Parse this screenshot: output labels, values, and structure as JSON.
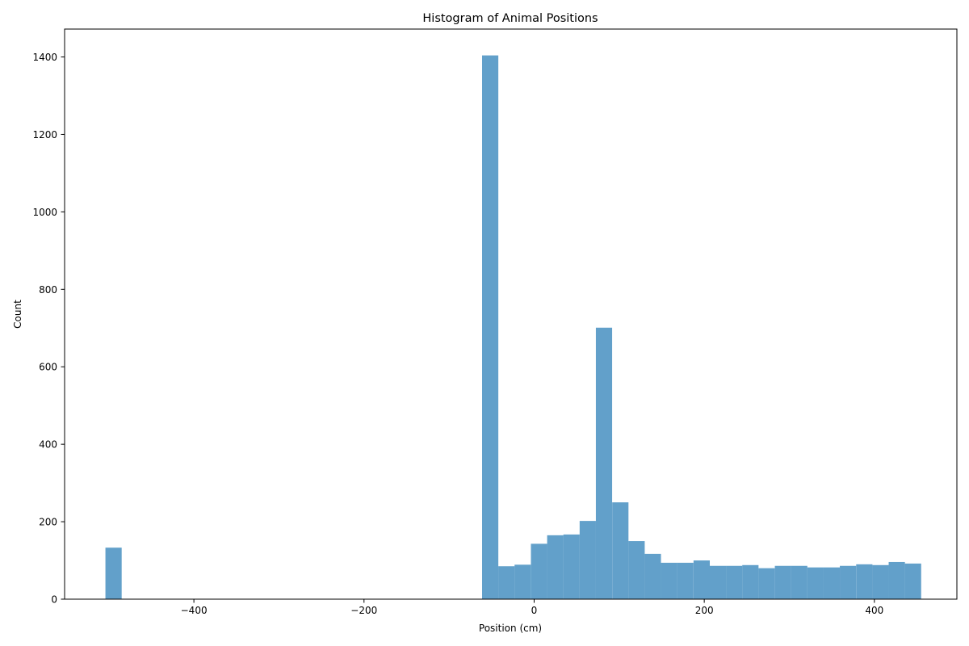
{
  "chart_data": {
    "type": "bar",
    "title": "Histogram of Animal Positions",
    "xlabel": "Position (cm)",
    "ylabel": "Count",
    "xlim": [
      -552,
      497
    ],
    "ylim": [
      0,
      1472
    ],
    "bin_width": 19.1,
    "bar_color": "#1f77b4",
    "bar_opacity": 0.7,
    "grid": false,
    "x_ticks": [
      -400,
      -200,
      0,
      200,
      400
    ],
    "x_tick_labels": [
      "−400",
      "−200",
      "0",
      "200",
      "400"
    ],
    "y_ticks": [
      0,
      200,
      400,
      600,
      800,
      1000,
      1200,
      1400
    ],
    "y_tick_labels": [
      "0",
      "200",
      "400",
      "600",
      "800",
      "1000",
      "1200",
      "1400"
    ],
    "bins": [
      {
        "start": -504.0,
        "count": 133
      },
      {
        "start": -61.2,
        "count": 1404
      },
      {
        "start": -42.1,
        "count": 85
      },
      {
        "start": -23.0,
        "count": 89
      },
      {
        "start": -3.8,
        "count": 143
      },
      {
        "start": 15.3,
        "count": 165
      },
      {
        "start": 34.4,
        "count": 167
      },
      {
        "start": 53.5,
        "count": 202
      },
      {
        "start": 72.6,
        "count": 701
      },
      {
        "start": 91.8,
        "count": 250
      },
      {
        "start": 110.9,
        "count": 150
      },
      {
        "start": 130.0,
        "count": 117
      },
      {
        "start": 149.1,
        "count": 94
      },
      {
        "start": 168.2,
        "count": 94
      },
      {
        "start": 187.4,
        "count": 100
      },
      {
        "start": 206.5,
        "count": 86
      },
      {
        "start": 225.6,
        "count": 86
      },
      {
        "start": 244.7,
        "count": 88
      },
      {
        "start": 263.8,
        "count": 80
      },
      {
        "start": 283.0,
        "count": 86
      },
      {
        "start": 302.1,
        "count": 86
      },
      {
        "start": 321.2,
        "count": 82
      },
      {
        "start": 340.3,
        "count": 82
      },
      {
        "start": 359.4,
        "count": 86
      },
      {
        "start": 378.6,
        "count": 90
      },
      {
        "start": 397.7,
        "count": 88
      },
      {
        "start": 416.8,
        "count": 96
      },
      {
        "start": 435.9,
        "count": 92
      }
    ]
  }
}
